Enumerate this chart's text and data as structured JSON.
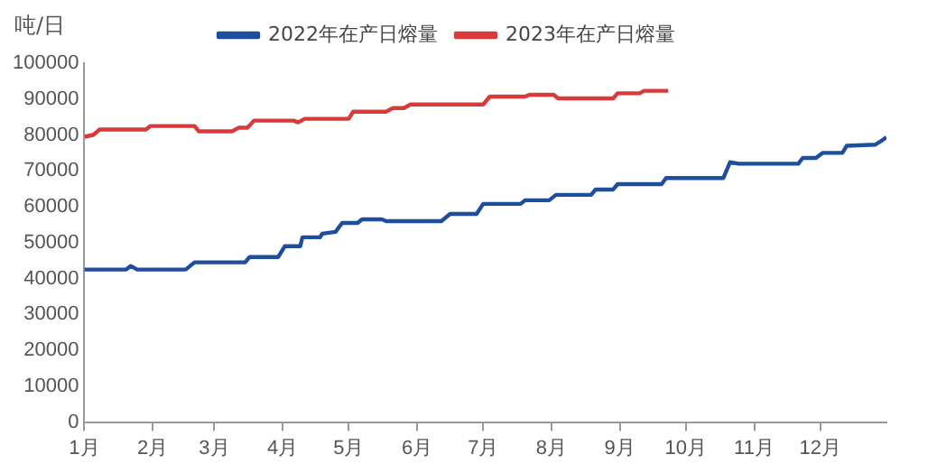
{
  "chart_data": {
    "type": "line",
    "ylabel": "吨/日",
    "legend": "top",
    "grid": false,
    "marker": "none",
    "line_style": "solid",
    "xlim": [
      "--01-01",
      "--12-31"
    ],
    "xticks": [
      {
        "value": "--01-01",
        "label": "1月"
      },
      {
        "value": "--02-01",
        "label": "2月"
      },
      {
        "value": "--03-01",
        "label": "3月"
      },
      {
        "value": "--04-01",
        "label": "4月"
      },
      {
        "value": "--05-01",
        "label": "5月"
      },
      {
        "value": "--06-01",
        "label": "6月"
      },
      {
        "value": "--07-01",
        "label": "7月"
      },
      {
        "value": "--08-01",
        "label": "8月"
      },
      {
        "value": "--09-01",
        "label": "9月"
      },
      {
        "value": "--10-01",
        "label": "10月"
      },
      {
        "value": "--11-01",
        "label": "11月"
      },
      {
        "value": "--12-01",
        "label": "12月"
      }
    ],
    "ylim": [
      0,
      100000
    ],
    "yticks": [
      0,
      10000,
      20000,
      30000,
      40000,
      50000,
      60000,
      70000,
      80000,
      90000,
      100000
    ],
    "series": [
      {
        "name": "2022年在产日熔量",
        "color": "#1f4e9c",
        "x": [
          "--01-01",
          "--01-20",
          "--01-22",
          "--01-25",
          "--02-16",
          "--02-20",
          "--03-15",
          "--03-17",
          "--03-30",
          "--04-02",
          "--04-09",
          "--04-10",
          "--04-18",
          "--04-19",
          "--04-25",
          "--04-28",
          "--05-05",
          "--05-07",
          "--05-16",
          "--05-18",
          "--06-12",
          "--06-16",
          "--06-28",
          "--07-01",
          "--07-18",
          "--07-20",
          "--07-31",
          "--08-03",
          "--08-19",
          "--08-21",
          "--08-29",
          "--08-31",
          "--09-20",
          "--09-22",
          "--10-18",
          "--10-21",
          "--10-25",
          "--11-21",
          "--11-23",
          "--11-29",
          "--12-02",
          "--12-11",
          "--12-13",
          "--12-26",
          "--12-29",
          "--12-31"
        ],
        "values": [
          42500,
          42500,
          43500,
          42500,
          42500,
          44500,
          44500,
          46000,
          46000,
          49000,
          49000,
          51500,
          51500,
          52500,
          53000,
          55500,
          55500,
          56500,
          56500,
          56000,
          56000,
          58000,
          58000,
          60800,
          60800,
          61800,
          61800,
          63300,
          63300,
          64800,
          64800,
          66300,
          66300,
          68000,
          68000,
          72400,
          72000,
          72000,
          73600,
          73600,
          75000,
          75000,
          77000,
          77300,
          78500,
          79400
        ]
      },
      {
        "name": "2023年在产日熔量",
        "color": "#d93a3a",
        "x": [
          "--01-01",
          "--01-05",
          "--01-08",
          "--01-29",
          "--01-31",
          "--02-20",
          "--02-22",
          "--03-09",
          "--03-12",
          "--03-16",
          "--03-19",
          "--04-06",
          "--04-08",
          "--04-11",
          "--05-01",
          "--05-03",
          "--05-18",
          "--05-21",
          "--05-26",
          "--05-29",
          "--07-01",
          "--07-04",
          "--07-20",
          "--07-22",
          "--08-02",
          "--08-04",
          "--08-29",
          "--08-31",
          "--09-10",
          "--09-12",
          "--09-23"
        ],
        "values": [
          79500,
          80000,
          81500,
          81500,
          82500,
          82500,
          81000,
          81000,
          82000,
          82000,
          84000,
          84000,
          83500,
          84500,
          84500,
          86500,
          86500,
          87500,
          87500,
          88500,
          88500,
          90700,
          90700,
          91200,
          91200,
          90200,
          90200,
          91600,
          91600,
          92300,
          92300
        ]
      }
    ]
  }
}
